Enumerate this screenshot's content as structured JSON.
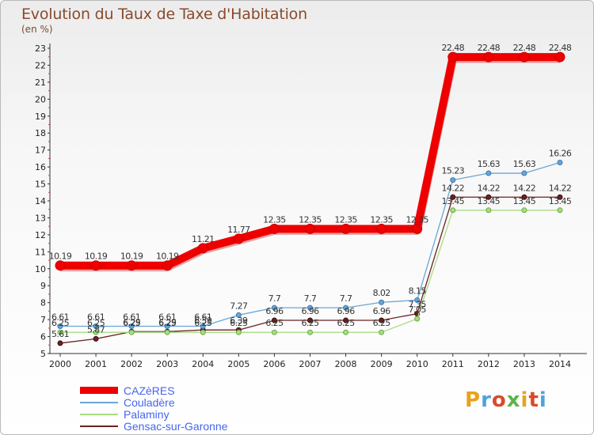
{
  "title": "Evolution du Taux de Taxe d'Habitation",
  "subtitle": "(en %)",
  "logo": {
    "text": "Proxiti",
    "colors": [
      "#e8a21c",
      "#4fa3d8",
      "#d94b2b",
      "#5db34a",
      "#e8a21c",
      "#d94b2b",
      "#4fa3d8"
    ]
  },
  "chart_data": {
    "type": "line",
    "x": [
      2000,
      2001,
      2002,
      2003,
      2004,
      2005,
      2006,
      2007,
      2008,
      2009,
      2010,
      2011,
      2012,
      2013,
      2014
    ],
    "ylim": [
      5,
      23
    ],
    "yticks": [
      5,
      6,
      7,
      8,
      9,
      10,
      11,
      12,
      13,
      14,
      15,
      16,
      17,
      18,
      19,
      20,
      21,
      22,
      23
    ],
    "grid": false,
    "legend_position": "bottom-left",
    "series": [
      {
        "name": "CAZèRES",
        "color": "#ee0000",
        "width": 10,
        "values": [
          10.19,
          10.19,
          10.19,
          10.19,
          11.21,
          11.77,
          12.35,
          12.35,
          12.35,
          12.35,
          12.35,
          22.48,
          22.48,
          22.48,
          22.48
        ]
      },
      {
        "name": "Couladère",
        "color": "#6aa6d6",
        "width": 1.3,
        "values": [
          6.61,
          6.61,
          6.61,
          6.61,
          6.61,
          7.27,
          7.7,
          7.7,
          7.7,
          8.02,
          8.15,
          15.23,
          15.63,
          15.63,
          16.26
        ]
      },
      {
        "name": "Palaminy",
        "color": "#a8dc84",
        "width": 1.3,
        "values": [
          6.25,
          6.25,
          6.25,
          6.25,
          6.25,
          6.25,
          6.25,
          6.25,
          6.25,
          6.25,
          7.05,
          13.45,
          13.45,
          13.45,
          13.45
        ]
      },
      {
        "name": "Gensac-sur-Garonne",
        "color": "#6b2222",
        "width": 1.3,
        "values": [
          5.61,
          5.87,
          6.29,
          6.29,
          6.39,
          6.39,
          6.96,
          6.96,
          6.96,
          6.96,
          7.35,
          14.22,
          14.22,
          14.22,
          14.22
        ]
      }
    ],
    "data_labels": [
      {
        "series": 0,
        "texts": [
          "10.19",
          "10.19",
          "10.19",
          "10.19",
          "11.21",
          "11.77",
          "12.35",
          "12.35",
          "12.35",
          "12.35",
          "12.35",
          "22.48",
          "22.48",
          "22.48",
          "22.48"
        ]
      },
      {
        "series": 1,
        "texts": [
          "6.61",
          "6.61",
          "6.61",
          "6.61",
          "6.61",
          "7.27",
          "7.7",
          "7.7",
          "7.7",
          "8.02",
          "8.15",
          "15.23",
          "15.63",
          "15.63",
          "16.26"
        ]
      },
      {
        "series": 2,
        "texts": [
          "6.25",
          "6.25",
          "6.25",
          "6.25",
          "6.25",
          "6.25",
          "6.25",
          "6.25",
          "6.25",
          "6.25",
          "7.05",
          "13.45",
          "13.45",
          "13.45",
          "13.45"
        ]
      },
      {
        "series": 3,
        "texts": [
          "5.61",
          "5.87",
          "6.29",
          "6.29",
          "6.39",
          "6.39",
          "6.96",
          "6.96",
          "6.96",
          "6.96",
          "7.35",
          "14.22",
          "14.22",
          "14.22",
          "14.22"
        ]
      }
    ]
  }
}
